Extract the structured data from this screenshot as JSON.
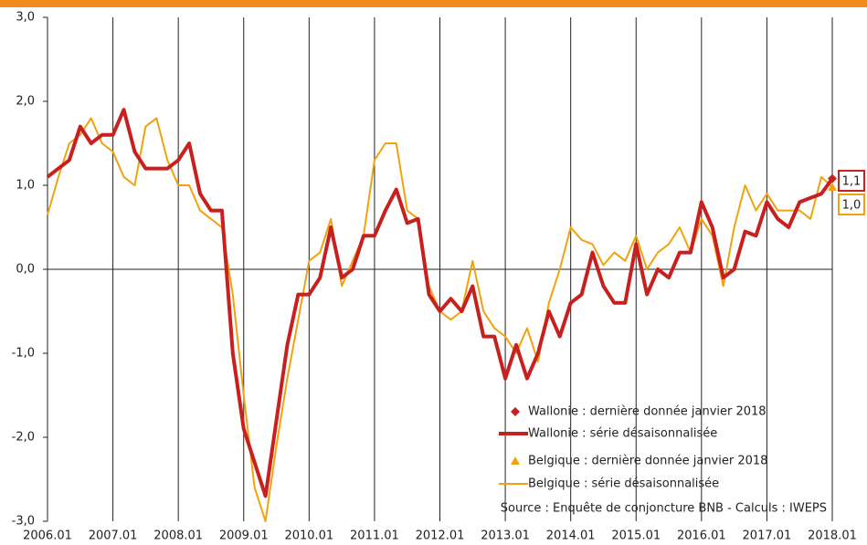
{
  "chart_data": {
    "type": "line",
    "x": [
      "2006.01",
      "2006.03",
      "2006.05",
      "2006.07",
      "2006.09",
      "2006.11",
      "2007.01",
      "2007.03",
      "2007.05",
      "2007.07",
      "2007.09",
      "2007.11",
      "2008.01",
      "2008.03",
      "2008.05",
      "2008.07",
      "2008.09",
      "2008.11",
      "2009.01",
      "2009.03",
      "2009.05",
      "2009.07",
      "2009.09",
      "2009.11",
      "2010.01",
      "2010.03",
      "2010.05",
      "2010.07",
      "2010.09",
      "2010.11",
      "2011.01",
      "2011.03",
      "2011.05",
      "2011.07",
      "2011.09",
      "2011.11",
      "2012.01",
      "2012.03",
      "2012.05",
      "2012.07",
      "2012.09",
      "2012.11",
      "2013.01",
      "2013.03",
      "2013.05",
      "2013.07",
      "2013.09",
      "2013.11",
      "2014.01",
      "2014.03",
      "2014.05",
      "2014.07",
      "2014.09",
      "2014.11",
      "2015.01",
      "2015.03",
      "2015.05",
      "2015.07",
      "2015.09",
      "2015.11",
      "2016.01",
      "2016.03",
      "2016.05",
      "2016.07",
      "2016.09",
      "2016.11",
      "2017.01",
      "2017.03",
      "2017.05",
      "2017.07",
      "2017.09",
      "2017.11",
      "2018.01"
    ],
    "series": [
      {
        "name": "Wallonie : série désaisonnalisée",
        "color": "#c8201e",
        "width": 4,
        "values": [
          1.1,
          1.2,
          1.3,
          1.7,
          1.5,
          1.6,
          1.6,
          1.9,
          1.4,
          1.2,
          1.2,
          1.2,
          1.3,
          1.5,
          0.9,
          0.7,
          0.7,
          -1.0,
          -1.9,
          -2.3,
          -2.7,
          -1.8,
          -0.9,
          -0.3,
          -0.3,
          -0.1,
          0.5,
          -0.1,
          0.0,
          0.4,
          0.4,
          0.7,
          0.95,
          0.55,
          0.6,
          -0.3,
          -0.5,
          -0.35,
          -0.5,
          -0.2,
          -0.8,
          -0.8,
          -1.3,
          -0.9,
          -1.3,
          -1.0,
          -0.5,
          -0.8,
          -0.4,
          -0.3,
          0.2,
          -0.2,
          -0.4,
          -0.4,
          0.3,
          -0.3,
          0.0,
          -0.1,
          0.2,
          0.2,
          0.8,
          0.5,
          -0.1,
          0.0,
          0.45,
          0.4,
          0.8,
          0.6,
          0.5,
          0.8,
          0.85,
          0.9,
          1.08
        ]
      },
      {
        "name": "Belgique : série désaisonnalisée",
        "color": "#f2a20c",
        "width": 2,
        "values": [
          0.65,
          1.1,
          1.5,
          1.6,
          1.8,
          1.5,
          1.4,
          1.1,
          1.0,
          1.7,
          1.8,
          1.3,
          1.0,
          1.0,
          0.7,
          0.6,
          0.5,
          -0.3,
          -1.5,
          -2.6,
          -3.0,
          -2.1,
          -1.3,
          -0.6,
          0.1,
          0.2,
          0.6,
          -0.2,
          0.1,
          0.4,
          1.3,
          1.5,
          1.5,
          0.7,
          0.6,
          -0.2,
          -0.5,
          -0.6,
          -0.5,
          0.1,
          -0.5,
          -0.7,
          -0.8,
          -1.0,
          -0.7,
          -1.1,
          -0.4,
          0.0,
          0.5,
          0.35,
          0.3,
          0.05,
          0.2,
          0.1,
          0.4,
          0.0,
          0.2,
          0.3,
          0.5,
          0.2,
          0.6,
          0.4,
          -0.2,
          0.5,
          1.0,
          0.7,
          0.9,
          0.7,
          0.7,
          0.7,
          0.6,
          1.1,
          0.98
        ]
      }
    ],
    "points": [
      {
        "name": "Wallonie : dernière donnée janvier 2018",
        "color": "#c8201e",
        "marker": "diamond",
        "x": "2018.01",
        "value": 1.08,
        "value_label": "1,1"
      },
      {
        "name": "Belgique : dernière donnée janvier 2018",
        "color": "#f2a20c",
        "marker": "triangle",
        "x": "2018.01",
        "value": 0.98,
        "value_label": "1,0"
      }
    ],
    "ylim": [
      -3,
      3
    ],
    "yticks": [
      {
        "value": -3,
        "label": "-3,0"
      },
      {
        "value": -2,
        "label": "-2,0"
      },
      {
        "value": -1,
        "label": "-1,0"
      },
      {
        "value": 0,
        "label": "0,0"
      },
      {
        "value": 1,
        "label": "1,0"
      },
      {
        "value": 2,
        "label": "2,0"
      },
      {
        "value": 3,
        "label": "3,0"
      }
    ],
    "xlim": [
      "2006.01",
      "2018.01"
    ],
    "xticks": [
      "2006.01",
      "2007.01",
      "2008.01",
      "2009.01",
      "2010.01",
      "2011.01",
      "2012.01",
      "2013.01",
      "2014.01",
      "2015.01",
      "2016.01",
      "2017.01",
      "2018.01"
    ],
    "annotation": "Source : Enquête de conjoncture BNB - Calculs : IWEPS"
  }
}
